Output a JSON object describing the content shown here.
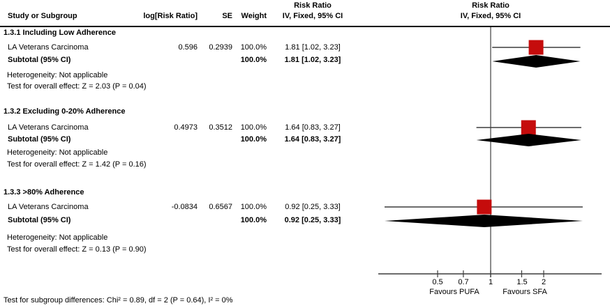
{
  "header": {
    "col_study": "Study or Subgroup",
    "col_log_rr": "log[Risk Ratio]",
    "col_se": "SE",
    "col_weight": "Weight",
    "col_effect_line1": "Risk Ratio",
    "col_effect_line2": "IV, Fixed, 95% CI",
    "plot_line1": "Risk Ratio",
    "plot_line2": "IV, Fixed, 95% CI"
  },
  "groups": [
    {
      "title": "1.3.1 Including Low Adherence",
      "study": {
        "name": "LA Veterans Carcinoma",
        "log_rr": "0.596",
        "se": "0.2939",
        "weight": "100.0%",
        "ci_text": "1.81 [1.02, 3.23]"
      },
      "subtotal": {
        "label": "Subtotal (95% CI)",
        "weight": "100.0%",
        "ci_text": "1.81 [1.02, 3.23]"
      },
      "heterogeneity": "Heterogeneity: Not applicable",
      "overall_effect": "Test for overall effect: Z = 2.03 (P = 0.04)"
    },
    {
      "title": "1.3.2 Excluding 0-20% Adherence",
      "study": {
        "name": "LA Veterans Carcinoma",
        "log_rr": "0.4973",
        "se": "0.3512",
        "weight": "100.0%",
        "ci_text": "1.64 [0.83, 3.27]"
      },
      "subtotal": {
        "label": "Subtotal (95% CI)",
        "weight": "100.0%",
        "ci_text": "1.64 [0.83, 3.27]"
      },
      "heterogeneity": "Heterogeneity: Not applicable",
      "overall_effect": "Test for overall effect: Z = 1.42 (P = 0.16)"
    },
    {
      "title": "1.3.3 >80% Adherence",
      "study": {
        "name": "LA Veterans Carcinoma",
        "log_rr": "-0.0834",
        "se": "0.6567",
        "weight": "100.0%",
        "ci_text": "0.92 [0.25, 3.33]"
      },
      "subtotal": {
        "label": "Subtotal (95% CI)",
        "weight": "100.0%",
        "ci_text": "0.92 [0.25, 3.33]"
      },
      "heterogeneity": "Heterogeneity: Not applicable",
      "overall_effect": "Test for overall effect: Z = 0.13 (P = 0.90)"
    }
  ],
  "footer": "Test for subgroup differences: Chi² = 0.89, df = 2 (P = 0.64), I² = 0%",
  "colors": {
    "marker": "#c50c0c",
    "diamond": "#000000",
    "line": "#3c3c3c",
    "null_line": "#5a5a5a"
  },
  "chart_data": {
    "type": "forest",
    "effect_measure": "Risk Ratio (IV, Fixed, 95% CI)",
    "scale": "log",
    "null_value": 1,
    "ticks": [
      0.5,
      0.7,
      1,
      1.5,
      2
    ],
    "tick_labels": [
      "0.5",
      "0.7",
      "1",
      "1.5",
      "2"
    ],
    "xlabel_left": "Favours PUFA",
    "xlabel_right": "Favours SFA",
    "groups": [
      {
        "name": "1.3.1 Including Low Adherence",
        "study": {
          "name": "LA Veterans Carcinoma",
          "rr": 1.81,
          "ci_low": 1.02,
          "ci_high": 3.23,
          "weight_pct": 100.0
        },
        "subtotal": {
          "rr": 1.81,
          "ci_low": 1.02,
          "ci_high": 3.23
        }
      },
      {
        "name": "1.3.2 Excluding 0-20% Adherence",
        "study": {
          "name": "LA Veterans Carcinoma",
          "rr": 1.64,
          "ci_low": 0.83,
          "ci_high": 3.27,
          "weight_pct": 100.0
        },
        "subtotal": {
          "rr": 1.64,
          "ci_low": 0.83,
          "ci_high": 3.27
        }
      },
      {
        "name": "1.3.3 >80% Adherence",
        "study": {
          "name": "LA Veterans Carcinoma",
          "rr": 0.92,
          "ci_low": 0.25,
          "ci_high": 3.33,
          "weight_pct": 100.0
        },
        "subtotal": {
          "rr": 0.92,
          "ci_low": 0.25,
          "ci_high": 3.33
        }
      }
    ]
  }
}
